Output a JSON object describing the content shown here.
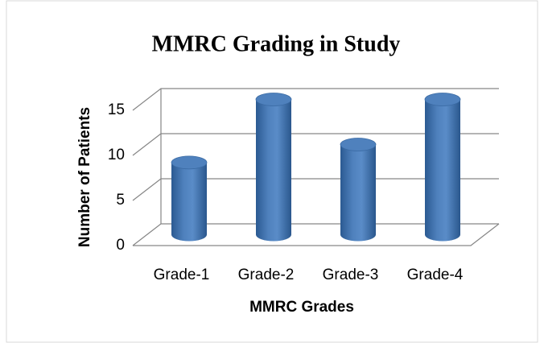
{
  "chart_data": {
    "type": "bar3d",
    "title": "MMRC Grading in Study",
    "categories": [
      "Grade-1",
      "Grade-2",
      "Grade-3",
      "Grade-4"
    ],
    "values": [
      8,
      15,
      10,
      15
    ],
    "color": "#4f81bd",
    "xlabel": "MMRC Grades",
    "ylabel": "Number of Patients",
    "ylim": [
      0,
      15
    ],
    "yticks": [
      0,
      5,
      10,
      15
    ],
    "grid": true
  }
}
